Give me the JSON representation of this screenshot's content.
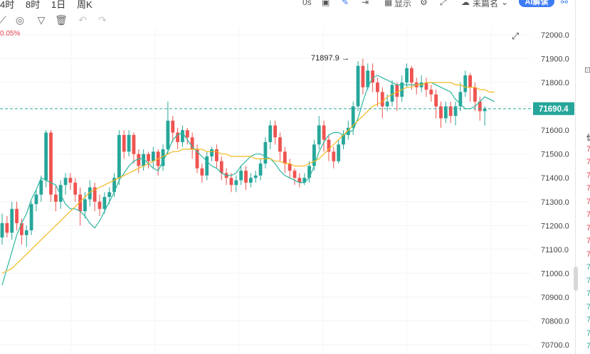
{
  "topbar": {
    "tabs": [
      "4时",
      "8时",
      "1日",
      "周K"
    ],
    "seconds_label": "0s",
    "display_label": "显示",
    "user_label": "未篇名",
    "ai_label": "AI解读"
  },
  "toolbar": {
    "icons": [
      "draw-icon",
      "magnet-icon",
      "filter-icon",
      "trash-icon",
      "undo-icon",
      "redo-icon"
    ]
  },
  "change_pct": "0.05%",
  "price_label": {
    "current": "71690.4",
    "high_marker": "71897.9"
  },
  "colors": {
    "up": "#26a69a",
    "down": "#ef5350",
    "ma_short": "#2bb7a0",
    "ma_long": "#f2b81f",
    "price_tag_bg": "#26a69a"
  },
  "chart_data": {
    "type": "candlestick",
    "ylim": [
      70700,
      72050
    ],
    "y_ticks": [
      "72000.0",
      "71900.0",
      "71800.0",
      "71700.0",
      "71600.0",
      "71500.0",
      "71400.0",
      "71300.0",
      "71200.0",
      "71100.0",
      "71000.0",
      "70900.0",
      "70800.0",
      "70700.0"
    ],
    "current_price": 71690.4,
    "high_annotation": 71897.9,
    "series": [
      {
        "name": "",
        "color": "#2bb7a0",
        "values": [
          70950,
          71020,
          71090,
          71160,
          71210,
          71250,
          71310,
          71350,
          71400,
          71390,
          71380,
          71370,
          71330,
          71290,
          71270,
          71270,
          71260,
          71240,
          71210,
          71190,
          71220,
          71260,
          71300,
          71340,
          71390,
          71420,
          71450,
          71470,
          71480,
          71480,
          71460,
          71440,
          71430,
          71470,
          71510,
          71560,
          71580,
          71590,
          71560,
          71530,
          71510,
          71490,
          71470,
          71450,
          71440,
          71420,
          71410,
          71410,
          71420,
          71450,
          71470,
          71490,
          71500,
          71500,
          71490,
          71480,
          71460,
          71430,
          71410,
          71400,
          71390,
          71380,
          71380,
          71400,
          71450,
          71510,
          71550,
          71580,
          71590,
          71590,
          71580,
          71590,
          71600,
          71650,
          71720,
          71780,
          71820,
          71830,
          71820,
          71810,
          71800,
          71790,
          71790,
          71790,
          71790,
          71790,
          71790,
          71800,
          71800,
          71790,
          71780,
          71770,
          71760,
          71730,
          71710,
          71690,
          71690,
          71700,
          71720,
          71740,
          71730,
          71720
        ]
      },
      {
        "name": "",
        "color": "#f2b81f",
        "values": [
          71000,
          71010,
          71020,
          71040,
          71060,
          71080,
          71100,
          71120,
          71140,
          71160,
          71180,
          71200,
          71220,
          71240,
          71260,
          71280,
          71300,
          71320,
          71340,
          71350,
          71360,
          71370,
          71380,
          71390,
          71400,
          71410,
          71420,
          71430,
          71440,
          71450,
          71460,
          71470,
          71480,
          71490,
          71500,
          71510,
          71510,
          71520,
          71520,
          71520,
          71520,
          71520,
          71510,
          71510,
          71510,
          71500,
          71500,
          71490,
          71490,
          71490,
          71490,
          71490,
          71480,
          71480,
          71480,
          71480,
          71470,
          71470,
          71460,
          71460,
          71450,
          71450,
          71450,
          71460,
          71470,
          71480,
          71500,
          71520,
          71540,
          71560,
          71580,
          71600,
          71620,
          71640,
          71660,
          71680,
          71700,
          71710,
          71720,
          71740,
          71750,
          71760,
          71770,
          71780,
          71780,
          71790,
          71790,
          71800,
          71800,
          71800,
          71800,
          71800,
          71800,
          71790,
          71790,
          71780,
          71780,
          71780,
          71770,
          71770,
          71760,
          71760
        ]
      }
    ],
    "candles": [
      [
        71150,
        71210,
        71120,
        71250
      ],
      [
        71210,
        71170,
        71150,
        71240
      ],
      [
        71170,
        71270,
        71140,
        71300
      ],
      [
        71270,
        71210,
        71180,
        71300
      ],
      [
        71210,
        71160,
        71120,
        71230
      ],
      [
        71160,
        71180,
        71110,
        71200
      ],
      [
        71180,
        71290,
        71160,
        71300
      ],
      [
        71290,
        71330,
        71260,
        71350
      ],
      [
        71330,
        71390,
        71300,
        71410
      ],
      [
        71390,
        71590,
        71360,
        71600
      ],
      [
        71590,
        71330,
        71300,
        71600
      ],
      [
        71330,
        71300,
        71260,
        71370
      ],
      [
        71300,
        71370,
        71270,
        71390
      ],
      [
        71370,
        71400,
        71330,
        71420
      ],
      [
        71400,
        71380,
        71350,
        71420
      ],
      [
        71380,
        71330,
        71300,
        71400
      ],
      [
        71330,
        71260,
        71200,
        71360
      ],
      [
        71260,
        71310,
        71230,
        71340
      ],
      [
        71310,
        71360,
        71280,
        71390
      ],
      [
        71360,
        71300,
        71260,
        71380
      ],
      [
        71300,
        71270,
        71240,
        71330
      ],
      [
        71270,
        71320,
        71250,
        71340
      ],
      [
        71320,
        71340,
        71290,
        71360
      ],
      [
        71340,
        71400,
        71320,
        71420
      ],
      [
        71400,
        71580,
        71370,
        71600
      ],
      [
        71580,
        71510,
        71480,
        71600
      ],
      [
        71510,
        71580,
        71490,
        71600
      ],
      [
        71580,
        71500,
        71460,
        71590
      ],
      [
        71500,
        71450,
        71420,
        71520
      ],
      [
        71450,
        71500,
        71430,
        71520
      ],
      [
        71500,
        71470,
        71440,
        71510
      ],
      [
        71470,
        71510,
        71440,
        71530
      ],
      [
        71510,
        71450,
        71410,
        71520
      ],
      [
        71450,
        71520,
        71430,
        71540
      ],
      [
        71520,
        71640,
        71500,
        71720
      ],
      [
        71640,
        71590,
        71550,
        71660
      ],
      [
        71590,
        71550,
        71520,
        71610
      ],
      [
        71550,
        71600,
        71530,
        71620
      ],
      [
        71600,
        71570,
        71540,
        71610
      ],
      [
        71570,
        71520,
        71480,
        71590
      ],
      [
        71520,
        71440,
        71420,
        71540
      ],
      [
        71440,
        71410,
        71380,
        71460
      ],
      [
        71410,
        71490,
        71390,
        71510
      ],
      [
        71490,
        71520,
        71470,
        71530
      ],
      [
        71520,
        71470,
        71440,
        71540
      ],
      [
        71470,
        71420,
        71390,
        71490
      ],
      [
        71420,
        71400,
        71370,
        71440
      ],
      [
        71400,
        71370,
        71340,
        71420
      ],
      [
        71370,
        71390,
        71340,
        71410
      ],
      [
        71390,
        71430,
        71370,
        71450
      ],
      [
        71430,
        71380,
        71350,
        71450
      ],
      [
        71380,
        71400,
        71360,
        71420
      ],
      [
        71400,
        71410,
        71380,
        71430
      ],
      [
        71410,
        71460,
        71390,
        71480
      ],
      [
        71460,
        71550,
        71440,
        71570
      ],
      [
        71550,
        71620,
        71520,
        71640
      ],
      [
        71620,
        71570,
        71540,
        71640
      ],
      [
        71570,
        71510,
        71470,
        71590
      ],
      [
        71510,
        71460,
        71420,
        71530
      ],
      [
        71460,
        71430,
        71400,
        71480
      ],
      [
        71430,
        71400,
        71370,
        71440
      ],
      [
        71400,
        71380,
        71360,
        71420
      ],
      [
        71380,
        71400,
        71370,
        71420
      ],
      [
        71400,
        71450,
        71380,
        71470
      ],
      [
        71450,
        71540,
        71430,
        71560
      ],
      [
        71540,
        71620,
        71520,
        71660
      ],
      [
        71620,
        71560,
        71510,
        71640
      ],
      [
        71560,
        71510,
        71470,
        71580
      ],
      [
        71510,
        71470,
        71440,
        71530
      ],
      [
        71470,
        71540,
        71460,
        71560
      ],
      [
        71540,
        71580,
        71520,
        71600
      ],
      [
        71580,
        71610,
        71560,
        71640
      ],
      [
        71610,
        71700,
        71580,
        71720
      ],
      [
        71700,
        71870,
        71680,
        71890
      ],
      [
        71870,
        71780,
        71750,
        71900
      ],
      [
        71780,
        71850,
        71770,
        71880
      ],
      [
        71850,
        71800,
        71760,
        71880
      ],
      [
        71800,
        71760,
        71700,
        71820
      ],
      [
        71760,
        71700,
        71650,
        71780
      ],
      [
        71700,
        71720,
        71680,
        71750
      ],
      [
        71720,
        71790,
        71700,
        71810
      ],
      [
        71790,
        71740,
        71680,
        71800
      ],
      [
        71740,
        71800,
        71720,
        71830
      ],
      [
        71800,
        71860,
        71780,
        71880
      ],
      [
        71860,
        71800,
        71770,
        71870
      ],
      [
        71800,
        71780,
        71750,
        71820
      ],
      [
        71780,
        71800,
        71760,
        71830
      ],
      [
        71800,
        71770,
        71740,
        71820
      ],
      [
        71770,
        71750,
        71720,
        71790
      ],
      [
        71750,
        71700,
        71650,
        71770
      ],
      [
        71700,
        71650,
        71610,
        71720
      ],
      [
        71650,
        71700,
        71630,
        71720
      ],
      [
        71700,
        71660,
        71630,
        71720
      ],
      [
        71660,
        71700,
        71620,
        71720
      ],
      [
        71700,
        71760,
        71680,
        71800
      ],
      [
        71760,
        71830,
        71740,
        71850
      ],
      [
        71830,
        71780,
        71720,
        71840
      ],
      [
        71780,
        71720,
        71680,
        71800
      ],
      [
        71720,
        71680,
        71640,
        71740
      ],
      [
        71680,
        71690,
        71620,
        71700
      ]
    ]
  },
  "right_panel": {
    "labels": [
      "价",
      "7",
      "7",
      "7",
      "7",
      "7",
      "7",
      "7",
      "7",
      "7",
      "7",
      "7",
      "7",
      "7",
      "7",
      "7",
      "7"
    ],
    "colors": [
      "#222",
      "#e0414c",
      "#e0414c",
      "#e0414c",
      "#e0414c",
      "#e0414c",
      "#e0414c",
      "#e0414c",
      "#e0414c",
      "#e0414c",
      "#26a69a",
      "#26a69a",
      "#26a69a",
      "#26a69a",
      "#26a69a",
      "#26a69a",
      "#26a69a"
    ]
  }
}
